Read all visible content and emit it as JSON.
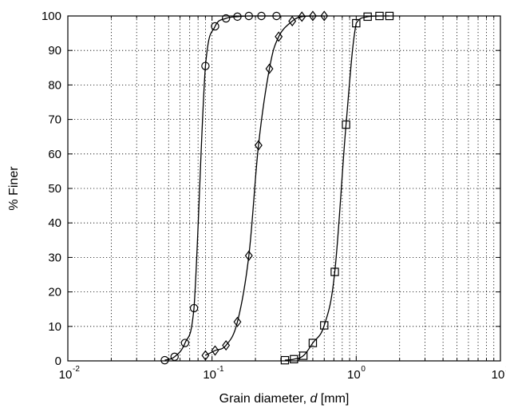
{
  "chart_data": {
    "type": "line",
    "title": "",
    "xlabel_prefix": "Grain diameter, ",
    "xlabel_var": "d",
    "xlabel_suffix": " [mm]",
    "ylabel": "% Finer",
    "xscale": "log",
    "xlim": [
      0.01,
      10
    ],
    "ylim": [
      0,
      100
    ],
    "grid": true,
    "x_ticks": [
      {
        "base": "10",
        "exp": "-2",
        "value": 0.01
      },
      {
        "base": "10",
        "exp": "-1",
        "value": 0.1
      },
      {
        "base": "10",
        "exp": "0",
        "value": 1
      },
      {
        "base": "10",
        "exp": "1",
        "value": 10
      }
    ],
    "y_ticks": [
      "0",
      "10",
      "20",
      "30",
      "40",
      "50",
      "60",
      "70",
      "80",
      "90",
      "100"
    ],
    "series": [
      {
        "marker": "circle",
        "x": [
          0.047,
          0.055,
          0.065,
          0.075,
          0.09,
          0.105,
          0.125,
          0.15,
          0.18,
          0.22,
          0.28
        ],
        "y": [
          0.2,
          1.2,
          5.2,
          15.3,
          85.5,
          97,
          99.3,
          99.8,
          100,
          100,
          100
        ]
      },
      {
        "marker": "diamond",
        "x": [
          0.09,
          0.105,
          0.125,
          0.15,
          0.18,
          0.21,
          0.25,
          0.29,
          0.36,
          0.42,
          0.5,
          0.6
        ],
        "y": [
          1.6,
          3,
          4.5,
          11.3,
          30.5,
          62.5,
          84.7,
          94,
          98.5,
          99.8,
          100,
          100
        ]
      },
      {
        "marker": "square",
        "x": [
          0.32,
          0.37,
          0.43,
          0.5,
          0.6,
          0.71,
          0.85,
          1.0,
          1.2,
          1.45,
          1.7
        ],
        "y": [
          0.2,
          0.5,
          1.5,
          5.2,
          10.3,
          25.8,
          68.5,
          97.9,
          99.8,
          100,
          100
        ]
      }
    ]
  }
}
